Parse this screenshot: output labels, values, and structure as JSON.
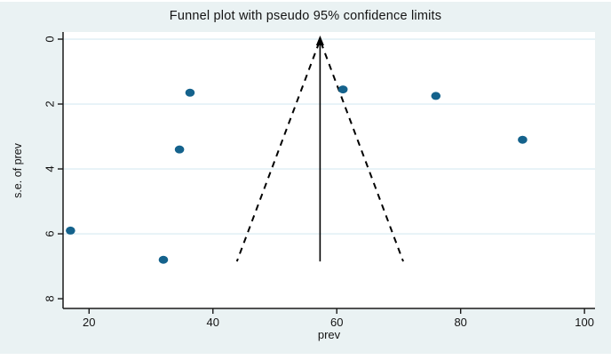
{
  "title": "Funnel plot with pseudo 95% confidence limits",
  "chart_data": {
    "type": "scatter",
    "title": "Funnel plot with pseudo 95% confidence limits",
    "xlabel": "prev",
    "ylabel": "s.e. of prev",
    "x_ticks": [
      20,
      40,
      60,
      80,
      100
    ],
    "y_ticks": [
      0,
      2,
      4,
      6,
      8
    ],
    "xlim": [
      15.8,
      101.7
    ],
    "ylim": [
      -0.22,
      8.3
    ],
    "y_axis_inverted": true,
    "grid": "horizontal gridlines at s.e. = 0, 2, 4, 6",
    "legend": "none",
    "points": [
      {
        "prev": 17,
        "se": 5.9
      },
      {
        "prev": 32,
        "se": 6.8
      },
      {
        "prev": 34.6,
        "se": 3.4
      },
      {
        "prev": 36.3,
        "se": 1.65
      },
      {
        "prev": 61,
        "se": 1.55
      },
      {
        "prev": 76,
        "se": 1.75
      },
      {
        "prev": 90,
        "se": 3.1
      }
    ],
    "funnel": {
      "center_prev": 57.3,
      "z": 1.96,
      "se_top": 0.1,
      "se_max": 6.85,
      "center_line_style": "solid vertical line with upward arrow",
      "limit_line_style": "dashed"
    },
    "colors": {
      "figure_background": "#eaf2f3",
      "plot_background": "#ffffff",
      "gridline": "#e3f1f6",
      "axis": "#1a1a1a",
      "marker": "#14628c",
      "funnel_lines": "#000000",
      "text": "#141414"
    }
  }
}
